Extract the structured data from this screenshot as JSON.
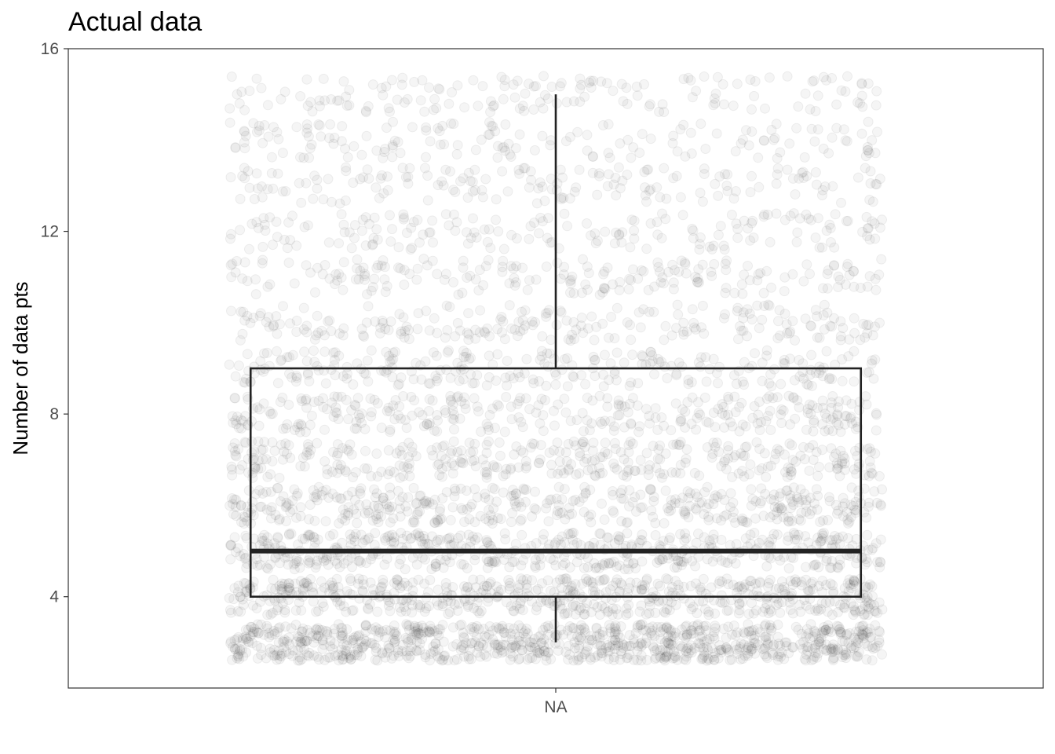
{
  "chart_data": {
    "type": "boxplot",
    "title": "Actual data",
    "xlabel": "",
    "ylabel": "Number of data pts",
    "categories": [
      "NA"
    ],
    "ylim": [
      2,
      16
    ],
    "yticks": [
      4,
      8,
      12,
      16
    ],
    "grid": false,
    "box": {
      "category": "NA",
      "min": 3,
      "q1": 4,
      "median": 5,
      "q3": 9,
      "max": 15
    },
    "jitter": {
      "note_color": "#000000",
      "value_range": [
        3,
        15
      ],
      "distribution": [
        {
          "value": 3,
          "weight": 900
        },
        {
          "value": 4,
          "weight": 600
        },
        {
          "value": 5,
          "weight": 500
        },
        {
          "value": 6,
          "weight": 420
        },
        {
          "value": 7,
          "weight": 360
        },
        {
          "value": 8,
          "weight": 320
        },
        {
          "value": 9,
          "weight": 260
        },
        {
          "value": 10,
          "weight": 220
        },
        {
          "value": 11,
          "weight": 200
        },
        {
          "value": 12,
          "weight": 180
        },
        {
          "value": 13,
          "weight": 170
        },
        {
          "value": 14,
          "weight": 160
        },
        {
          "value": 15,
          "weight": 160
        }
      ]
    }
  }
}
